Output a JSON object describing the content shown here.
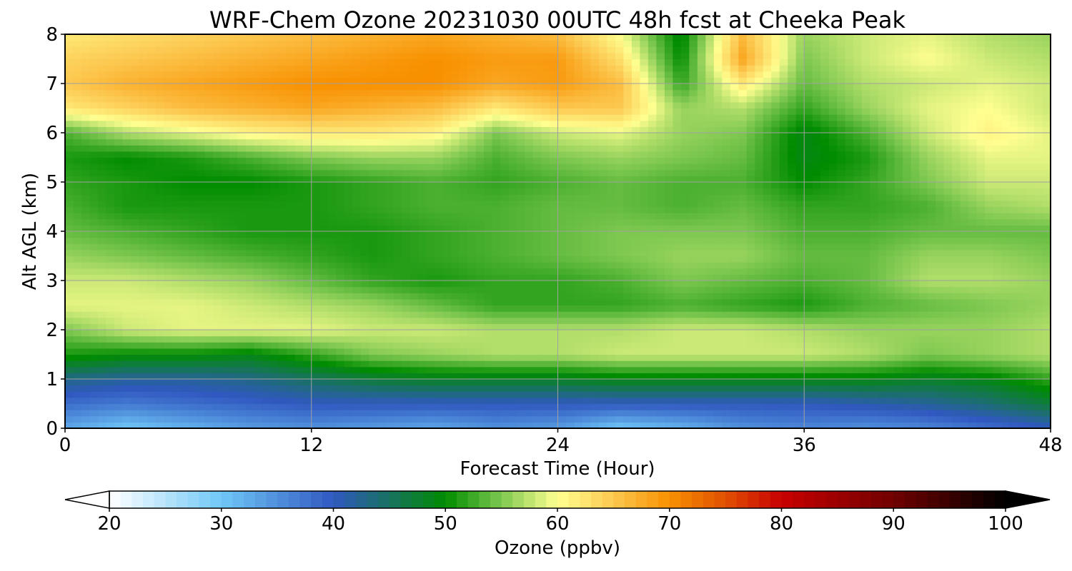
{
  "chart_data": {
    "type": "heatmap",
    "title": "WRF-Chem Ozone  20231030 00UTC 48h fcst at Cheeka Peak",
    "xlabel": "Forecast Time (Hour)",
    "ylabel": "Alt AGL (km)",
    "xlim": [
      0,
      48
    ],
    "ylim": [
      0,
      8
    ],
    "x_ticks": [
      0,
      12,
      24,
      36,
      48
    ],
    "y_ticks": [
      0,
      1,
      2,
      3,
      4,
      5,
      6,
      7,
      8
    ],
    "grid": true,
    "x": [
      0,
      3,
      6,
      9,
      12,
      15,
      18,
      21,
      24,
      27,
      30,
      33,
      36,
      39,
      42,
      45,
      48
    ],
    "y": [
      0,
      0.5,
      1,
      1.5,
      2,
      2.5,
      3,
      3.5,
      4,
      4.5,
      5,
      5.5,
      6,
      6.5,
      7,
      7.5,
      8
    ],
    "values": [
      [
        33,
        30,
        32,
        34,
        35,
        34,
        33,
        35,
        34,
        30,
        32,
        35,
        36,
        35,
        36,
        38,
        40
      ],
      [
        38,
        37,
        38,
        39,
        40,
        40,
        40,
        40,
        40,
        40,
        40,
        40,
        40,
        41,
        42,
        44,
        47
      ],
      [
        43,
        42,
        42,
        43,
        45,
        47,
        48,
        48,
        48,
        49,
        49,
        49,
        49,
        49,
        48,
        49,
        52
      ],
      [
        51,
        50,
        50,
        49,
        52,
        55,
        56,
        57,
        57,
        58,
        58,
        58,
        58,
        57,
        55,
        56,
        57
      ],
      [
        55,
        58,
        59,
        59,
        59,
        58,
        58,
        57,
        57,
        57,
        58,
        58,
        57,
        56,
        56,
        56,
        57
      ],
      [
        59,
        59,
        59,
        58,
        57,
        56,
        54,
        52,
        52,
        52,
        53,
        52,
        51,
        53,
        54,
        55,
        56
      ],
      [
        58,
        58,
        57,
        56,
        54,
        52,
        51,
        52,
        52,
        53,
        55,
        54,
        53,
        54,
        57,
        57,
        56
      ],
      [
        56,
        55,
        54,
        53,
        52,
        51,
        52,
        53,
        54,
        55,
        56,
        56,
        54,
        54,
        56,
        56,
        55
      ],
      [
        54,
        53,
        52,
        51,
        51,
        51,
        52,
        53,
        54,
        55,
        55,
        55,
        53,
        53,
        54,
        54,
        54
      ],
      [
        53,
        51,
        51,
        51,
        51,
        52,
        53,
        53,
        54,
        54,
        53,
        54,
        52,
        52,
        53,
        56,
        57
      ],
      [
        52,
        51,
        50,
        50,
        51,
        52,
        53,
        52,
        53,
        54,
        53,
        53,
        50,
        52,
        55,
        58,
        58
      ],
      [
        51,
        50,
        51,
        53,
        55,
        56,
        56,
        53,
        55,
        56,
        55,
        54,
        49,
        51,
        56,
        59,
        59
      ],
      [
        53,
        57,
        59,
        61,
        62,
        62,
        61,
        55,
        58,
        59,
        56,
        55,
        49,
        53,
        58,
        61,
        59
      ],
      [
        62,
        64,
        66,
        67,
        68,
        67,
        66,
        62,
        65,
        65,
        56,
        57,
        52,
        56,
        59,
        60,
        58
      ],
      [
        65,
        67,
        68,
        69,
        70,
        70,
        70,
        68,
        69,
        66,
        52,
        62,
        54,
        57,
        58,
        59,
        58
      ],
      [
        64,
        65,
        66,
        67,
        68,
        69,
        70,
        69,
        69,
        63,
        50,
        68,
        55,
        58,
        60,
        58,
        57
      ],
      [
        62,
        63,
        64,
        65,
        66,
        67,
        68,
        67,
        66,
        60,
        49,
        66,
        56,
        58,
        59,
        57,
        56
      ]
    ],
    "colorbar": {
      "label": "Ozone  (ppbv)",
      "min": 20,
      "max": 100,
      "ticks": [
        20,
        30,
        40,
        50,
        60,
        70,
        80,
        90,
        100
      ],
      "extend": "both",
      "colors": {
        "20": "#ffffff",
        "30": "#70c8f8",
        "40": "#3058c0",
        "50": "#008c00",
        "55": "#7ec850",
        "60": "#ffff90",
        "65": "#fcc850",
        "70": "#f89000",
        "75": "#e05000",
        "80": "#c80000",
        "90": "#700000",
        "100": "#000000"
      }
    }
  }
}
